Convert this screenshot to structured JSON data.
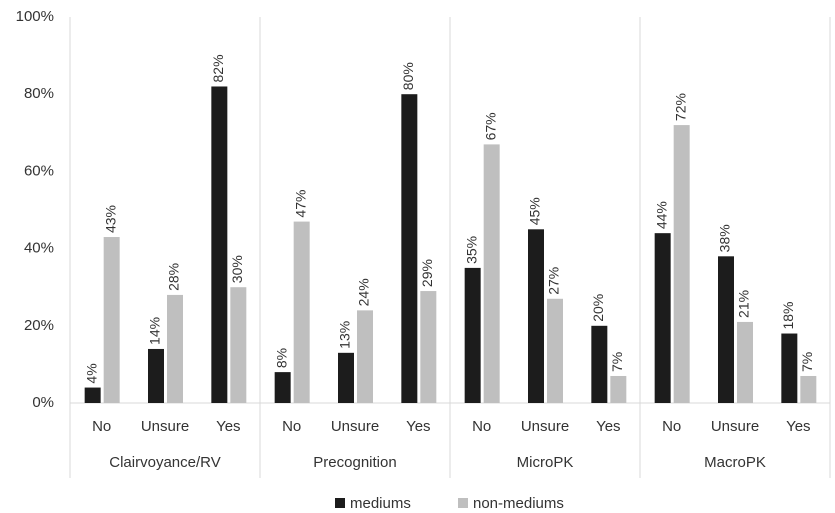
{
  "chart_data": {
    "type": "bar",
    "categories": [
      "No",
      "Unsure",
      "Yes",
      "No",
      "Unsure",
      "Yes",
      "No",
      "Unsure",
      "Yes",
      "No",
      "Unsure",
      "Yes"
    ],
    "groups": [
      "Clairvoyance/RV",
      "Precognition",
      "MicroPK",
      "MacroPK"
    ],
    "series": [
      {
        "name": "mediums",
        "color": "#1c1c1c",
        "values": [
          4,
          14,
          82,
          8,
          13,
          80,
          35,
          45,
          20,
          44,
          38,
          18
        ],
        "value_labels": [
          "4%",
          "14%",
          "82%",
          "8%",
          "13%",
          "80%",
          "35%",
          "45%",
          "20%",
          "44%",
          "38%",
          "18%"
        ]
      },
      {
        "name": "non-mediums",
        "color": "#bfbfbf",
        "values": [
          43,
          28,
          30,
          47,
          24,
          29,
          67,
          27,
          7,
          72,
          21,
          7
        ],
        "value_labels": [
          "43%",
          "28%",
          "30%",
          "47%",
          "24%",
          "29%",
          "67%",
          "27%",
          "7%",
          "72%",
          "21%",
          "7%"
        ]
      }
    ],
    "ylim": [
      0,
      100
    ],
    "yticks": [
      {
        "value": 0,
        "label": "0%"
      },
      {
        "value": 20,
        "label": "20%"
      },
      {
        "value": 40,
        "label": "40%"
      },
      {
        "value": 60,
        "label": "60%"
      },
      {
        "value": 80,
        "label": "80%"
      },
      {
        "value": 100,
        "label": "100%"
      }
    ]
  }
}
